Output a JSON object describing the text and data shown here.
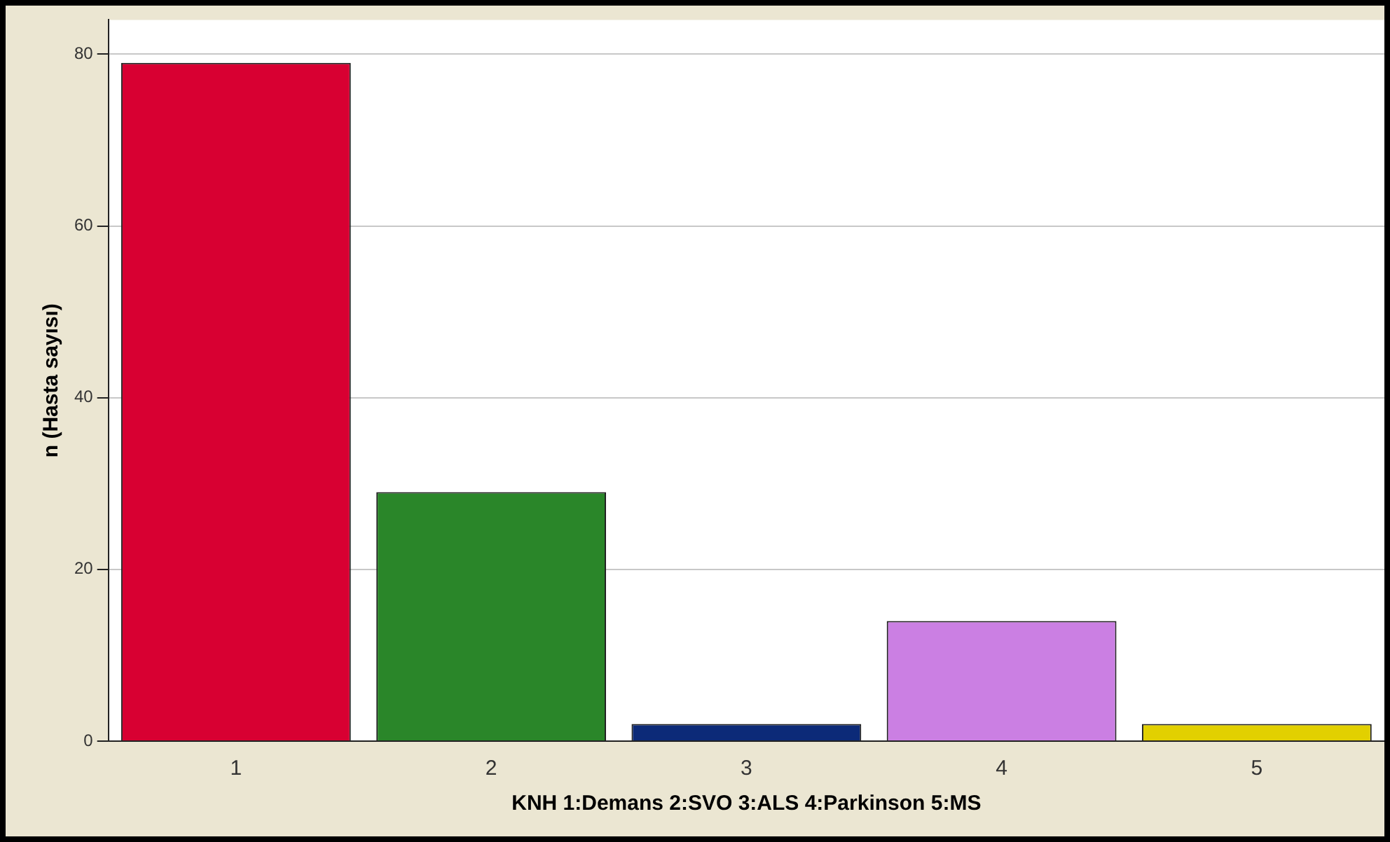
{
  "chart_data": {
    "type": "bar",
    "xlabel": "KNH 1:Demans 2:SVO 3:ALS 4:Parkinson 5:MS",
    "ylabel": "n (Hasta sayısı)",
    "categories": [
      "1",
      "2",
      "3",
      "4",
      "5"
    ],
    "values": [
      79,
      29,
      2,
      14,
      2
    ],
    "colors": [
      "#d80032",
      "#2a8629",
      "#0c2a78",
      "#cb7fe3",
      "#e2d000"
    ],
    "ylim": [
      0,
      84
    ],
    "yticks": [
      0,
      20,
      40,
      60,
      80
    ],
    "grid": "y",
    "legend": false
  }
}
